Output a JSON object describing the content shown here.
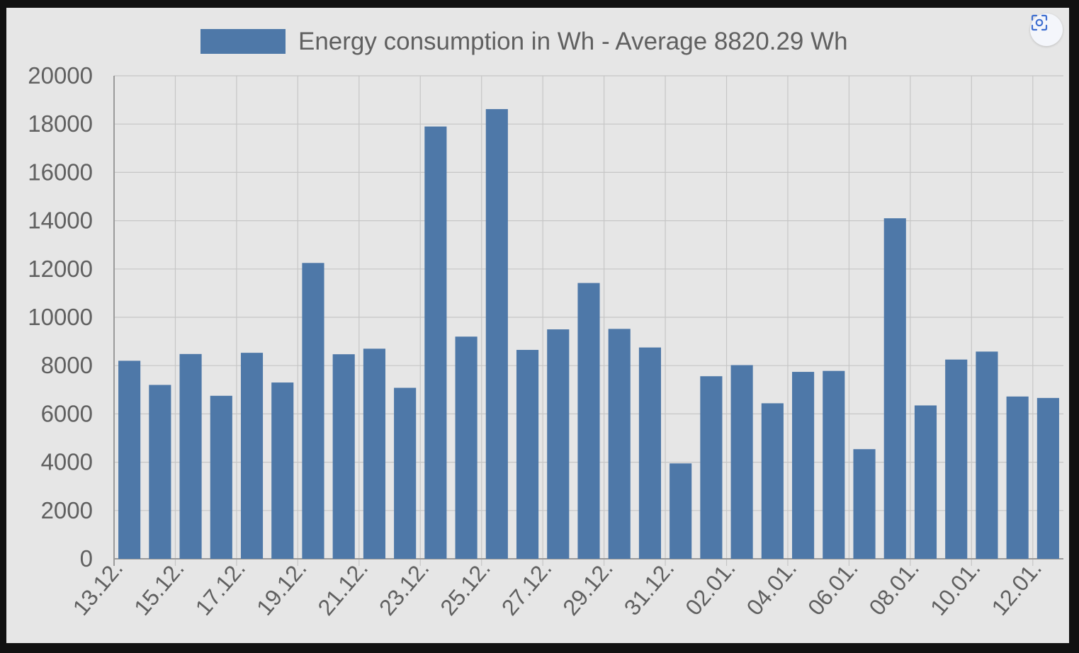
{
  "lens_button": {
    "icon": "lens-scan-icon"
  },
  "colors": {
    "bar": "#4e78a8",
    "grid": "#c6c6c6",
    "axis": "#9a9a9a",
    "text": "#606060",
    "panel": "#e6e6e6",
    "icon": "#3f6fd0"
  },
  "chart_data": {
    "type": "bar",
    "legend": "Energy consumption in Wh - Average 8820.29 Wh",
    "legend_position": "top",
    "grid": true,
    "ylim": [
      0,
      20000
    ],
    "y_ticks": [
      0,
      2000,
      4000,
      6000,
      8000,
      10000,
      12000,
      14000,
      16000,
      18000,
      20000
    ],
    "x_tick_labels": [
      "13.12.",
      "15.12.",
      "17.12.",
      "19.12.",
      "21.12.",
      "23.12.",
      "25.12.",
      "27.12.",
      "29.12.",
      "31.12.",
      "02.01.",
      "04.01.",
      "06.01.",
      "08.01.",
      "10.01.",
      "12.01."
    ],
    "series": [
      {
        "name": "Energy consumption in Wh - Average 8820.29 Wh",
        "values": [
          8200,
          7200,
          8480,
          6750,
          8530,
          7300,
          12250,
          8470,
          8700,
          7080,
          17900,
          9200,
          18620,
          8650,
          9500,
          11420,
          9520,
          8750,
          3950,
          7560,
          8020,
          6440,
          7740,
          7780,
          4540,
          14100,
          6350,
          8250,
          8580,
          6720,
          6660
        ]
      }
    ]
  }
}
